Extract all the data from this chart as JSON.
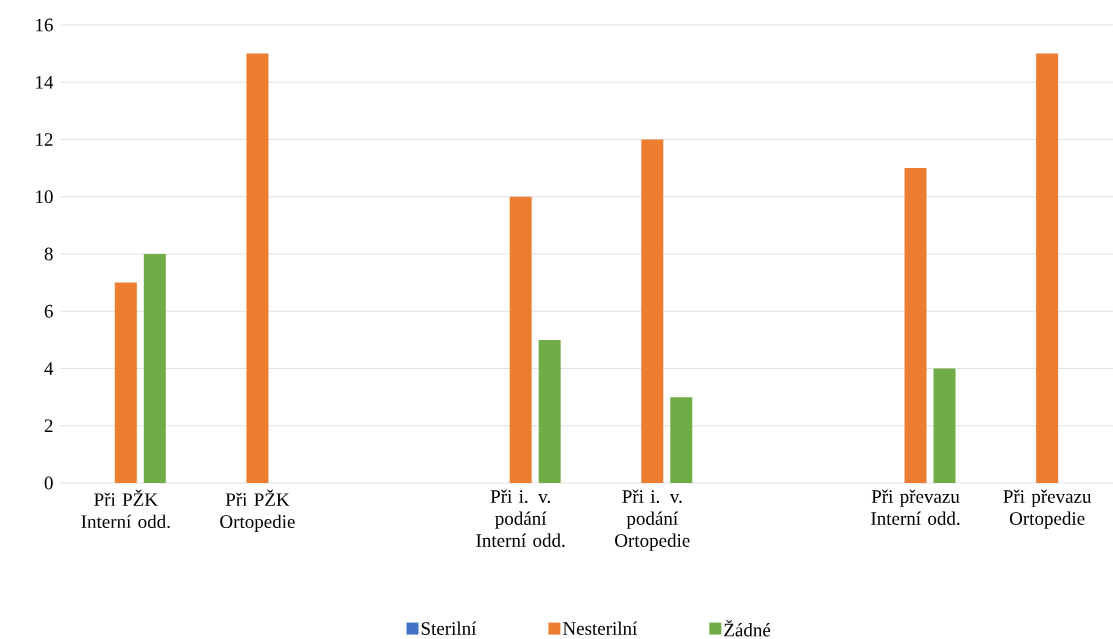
{
  "chart_data": {
    "type": "bar",
    "categories": [
      "Při PŽK Interní odd.",
      "Při PŽK Ortopedie",
      null,
      "Při i. v. podání Interní odd.",
      "Při i. v. podání Ortopedie",
      null,
      "Při převazu Interní odd.",
      "Při převazu Ortopedie"
    ],
    "series": [
      {
        "name": "Sterilní",
        "color": "#4472c4",
        "values": [
          0,
          0,
          null,
          0,
          0,
          null,
          0,
          0
        ]
      },
      {
        "name": "Nesterilní",
        "color": "#ed7d31",
        "values": [
          7,
          15,
          null,
          10,
          12,
          null,
          11,
          15
        ]
      },
      {
        "name": "Žádné",
        "color": "#70ad47",
        "values": [
          8,
          0,
          null,
          5,
          3,
          null,
          4,
          0
        ]
      }
    ],
    "ylim": [
      0,
      16
    ],
    "yticks": [
      0,
      2,
      4,
      6,
      8,
      10,
      12,
      14,
      16
    ],
    "grid": "y",
    "legend": "bottom"
  }
}
